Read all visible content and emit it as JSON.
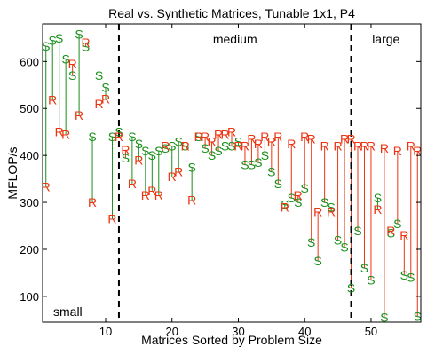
{
  "chart_data": {
    "type": "scatter",
    "title": "Real vs. Synthetic Matrices, Tunable 1x1, P4",
    "xlabel": "Matrices Sorted by Problem Size",
    "ylabel": "MFLOP/s",
    "xlim": [
      0.5,
      57.5
    ],
    "ylim": [
      45,
      680
    ],
    "xticks": [
      10,
      20,
      30,
      40,
      50
    ],
    "yticks": [
      100,
      200,
      300,
      400,
      500,
      600
    ],
    "grid": false,
    "region_dividers": [
      12,
      47
    ],
    "regions": [
      "small",
      "medium",
      "large"
    ],
    "colors": {
      "synthetic": "#1a8f1a",
      "real": "#ee3311"
    },
    "series": [
      {
        "marker": "S",
        "x": [
          1,
          2,
          3,
          4,
          5,
          6,
          7,
          8,
          9,
          10,
          11,
          12,
          13,
          14,
          15,
          16,
          17,
          18,
          19,
          20,
          21,
          22,
          23,
          24,
          25,
          26,
          27,
          28,
          29,
          30,
          31,
          32,
          33,
          34,
          35,
          36,
          37,
          38,
          39,
          40,
          41,
          42,
          43,
          44,
          45,
          46,
          47,
          48,
          49,
          50,
          51,
          52,
          53,
          54,
          55,
          56,
          57
        ],
        "y": [
          633,
          645,
          650,
          605,
          570,
          658,
          632,
          440,
          570,
          545,
          440,
          450,
          395,
          440,
          425,
          410,
          400,
          410,
          415,
          420,
          430,
          420,
          375,
          440,
          415,
          400,
          410,
          420,
          420,
          430,
          380,
          380,
          385,
          400,
          365,
          340,
          295,
          310,
          300,
          330,
          215,
          175,
          300,
          290,
          220,
          205,
          118,
          240,
          160,
          135,
          310,
          55,
          235,
          255,
          145,
          140,
          57
        ]
      },
      {
        "marker": "R",
        "x": [
          1,
          2,
          3,
          4,
          5,
          6,
          7,
          8,
          9,
          10,
          11,
          12,
          13,
          14,
          15,
          16,
          17,
          18,
          19,
          20,
          21,
          22,
          23,
          24,
          25,
          26,
          27,
          28,
          29,
          30,
          31,
          32,
          33,
          34,
          35,
          36,
          37,
          38,
          39,
          40,
          41,
          42,
          43,
          44,
          45,
          46,
          47,
          48,
          49,
          50,
          51,
          52,
          53,
          54,
          55,
          56,
          57
        ],
        "y": [
          333,
          518,
          450,
          445,
          595,
          485,
          640,
          300,
          510,
          520,
          265,
          440,
          412,
          340,
          390,
          315,
          325,
          315,
          420,
          355,
          365,
          420,
          305,
          440,
          440,
          430,
          445,
          445,
          450,
          420,
          420,
          435,
          425,
          440,
          430,
          440,
          290,
          425,
          315,
          440,
          435,
          280,
          420,
          280,
          420,
          435,
          435,
          420,
          420,
          420,
          285,
          415,
          240,
          410,
          230,
          420,
          410
        ]
      }
    ]
  }
}
